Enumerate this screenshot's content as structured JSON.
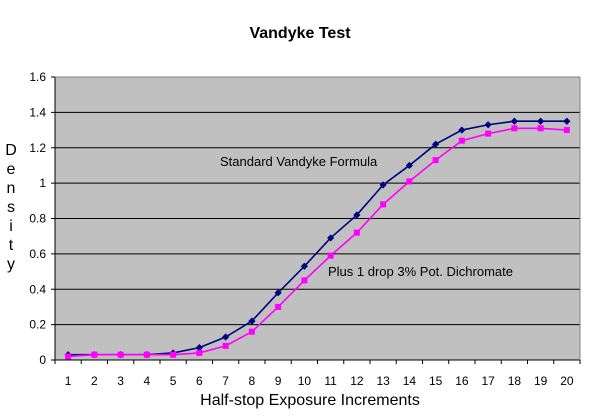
{
  "chart_data": {
    "type": "line",
    "title": "Vandyke Test",
    "xlabel": "Half-stop Exposure Increments",
    "ylabel": "Density",
    "categories": [
      1,
      2,
      3,
      4,
      5,
      6,
      7,
      8,
      9,
      10,
      11,
      12,
      13,
      14,
      15,
      16,
      17,
      18,
      19,
      20
    ],
    "ylim": [
      0,
      1.6
    ],
    "yticks": [
      "0",
      "0.2",
      "0.4",
      "0.6",
      "0.8",
      "1",
      "1.2",
      "1.4",
      "1.6"
    ],
    "grid": true,
    "plot_background": "#c0c0c0",
    "series": [
      {
        "name": "Standard Vandyke Formula",
        "color": "#000080",
        "marker": "diamond",
        "values": [
          0.03,
          0.03,
          0.03,
          0.03,
          0.04,
          0.07,
          0.13,
          0.22,
          0.38,
          0.53,
          0.69,
          0.82,
          0.99,
          1.1,
          1.22,
          1.3,
          1.33,
          1.35,
          1.35,
          1.35
        ]
      },
      {
        "name": "Plus 1 drop 3% Pot. Dichromate",
        "color": "#ff00ff",
        "marker": "square",
        "values": [
          0.02,
          0.03,
          0.03,
          0.03,
          0.03,
          0.04,
          0.08,
          0.16,
          0.3,
          0.45,
          0.59,
          0.72,
          0.88,
          1.01,
          1.13,
          1.24,
          1.28,
          1.31,
          1.31,
          1.3
        ]
      }
    ],
    "annotations": [
      {
        "text": "Standard Vandyke Formula",
        "series": 0
      },
      {
        "text": "Plus 1 drop 3% Pot. Dichromate",
        "series": 1
      }
    ]
  }
}
